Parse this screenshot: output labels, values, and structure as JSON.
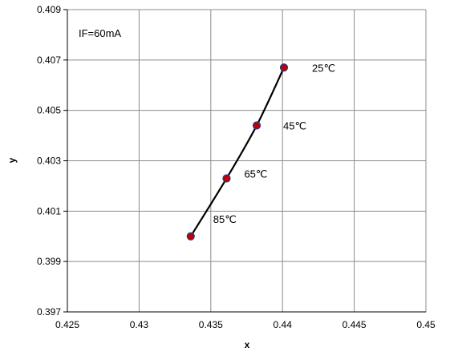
{
  "chart_data": {
    "type": "scatter",
    "title": "",
    "xlabel": "x",
    "ylabel": "y",
    "xlim": [
      0.425,
      0.45
    ],
    "ylim": [
      0.397,
      0.409
    ],
    "x_ticks": [
      "0.425",
      "0.43",
      "0.435",
      "0.44",
      "0.445",
      "0.45"
    ],
    "y_ticks": [
      "0.397",
      "0.399",
      "0.401",
      "0.403",
      "0.405",
      "0.407",
      "0.409"
    ],
    "grid": true,
    "annotation": "IF=60mA",
    "series": [
      {
        "line_color": "#000000",
        "marker_color": "#c00000",
        "marker_edge_color": "#1f3f8f",
        "points": [
          {
            "x": 0.4336,
            "y": 0.4,
            "label": "85℃"
          },
          {
            "x": 0.4361,
            "y": 0.4023,
            "label": "65℃"
          },
          {
            "x": 0.4382,
            "y": 0.4044,
            "label": "45℃"
          },
          {
            "x": 0.4401,
            "y": 0.4067,
            "label": "25℃"
          }
        ]
      }
    ]
  }
}
